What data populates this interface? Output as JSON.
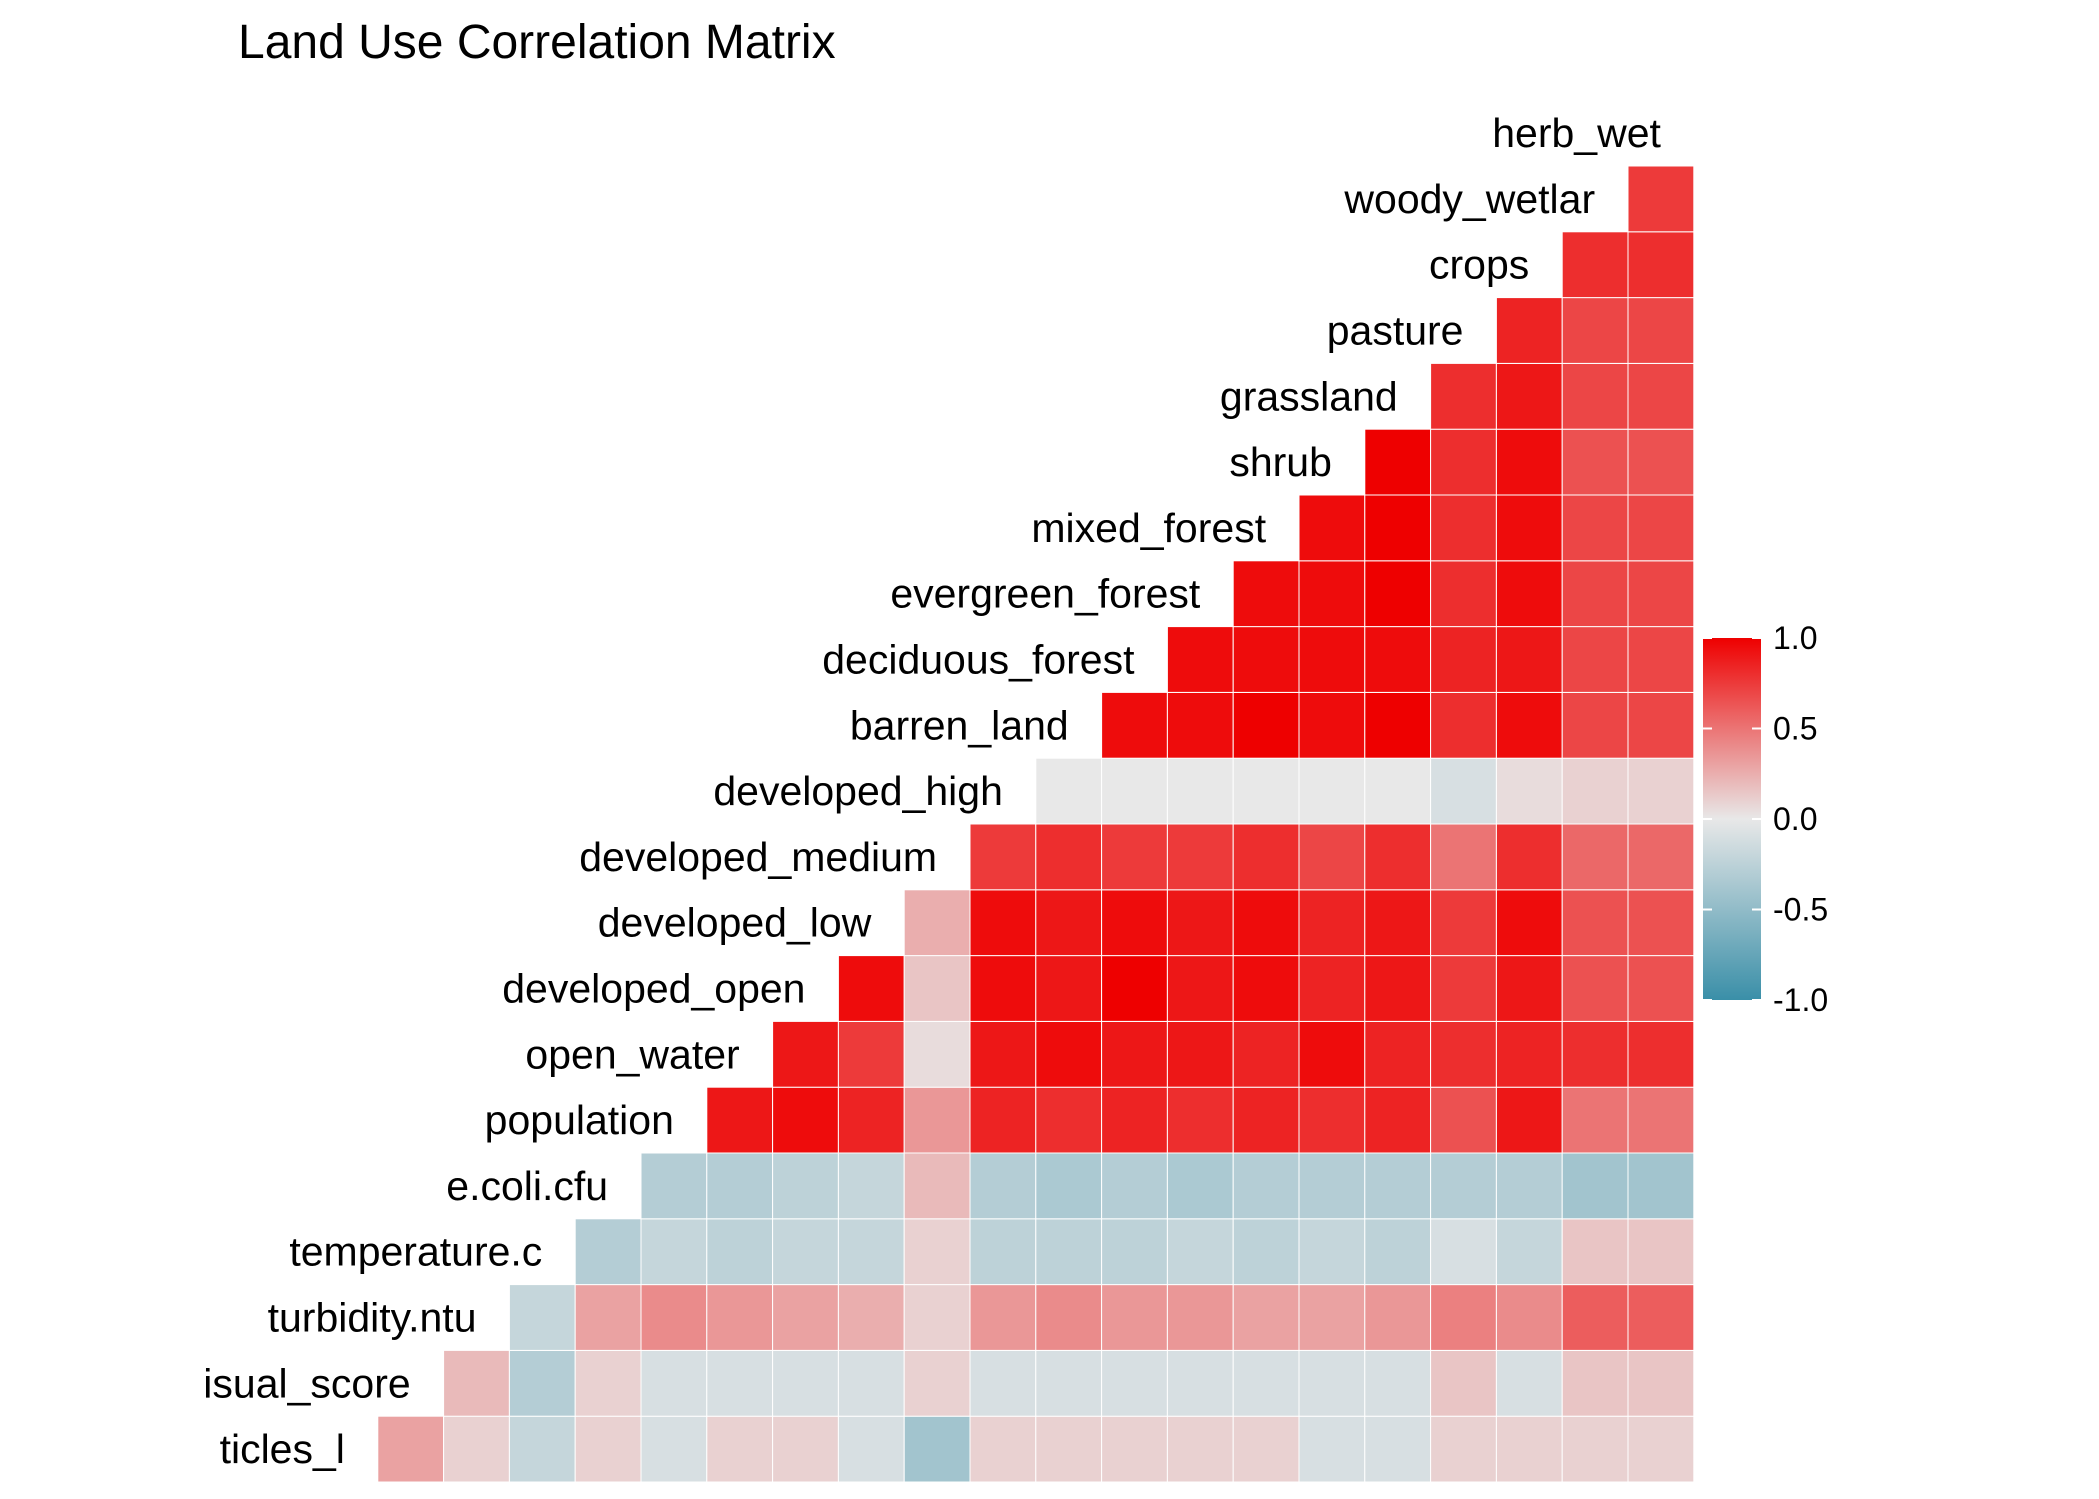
{
  "chart_data": {
    "type": "heatmap",
    "title": "Land Use Correlation Matrix",
    "variables": [
      "ticles_l",
      "isual_score",
      "turbidity.ntu",
      "temperature.c",
      "e.coli.cfu",
      "population",
      "open_water",
      "developed_open",
      "developed_low",
      "developed_medium",
      "developed_high",
      "barren_land",
      "deciduous_forest",
      "evergreen_forest",
      "mixed_forest",
      "shrub",
      "grassland",
      "pasture",
      "crops",
      "woody_wetlar",
      "herb_wet"
    ],
    "matrix": [
      [
        null,
        0.3,
        0.1,
        -0.2,
        0.1,
        -0.1,
        0.1,
        0.1,
        -0.1,
        -0.4,
        0.1,
        0.1,
        0.1,
        0.1,
        0.1,
        -0.1,
        -0.1,
        0.1,
        0.1,
        0.1,
        0.1
      ],
      [
        null,
        null,
        0.2,
        -0.3,
        0.1,
        -0.1,
        -0.1,
        -0.1,
        -0.1,
        0.1,
        -0.1,
        -0.1,
        -0.1,
        -0.1,
        -0.1,
        -0.1,
        -0.1,
        0.15,
        -0.1,
        0.15,
        0.15
      ],
      [
        null,
        null,
        null,
        -0.2,
        0.3,
        0.4,
        0.35,
        0.3,
        0.25,
        0.1,
        0.35,
        0.4,
        0.35,
        0.35,
        0.3,
        0.3,
        0.35,
        0.45,
        0.4,
        0.6,
        0.6
      ],
      [
        null,
        null,
        null,
        null,
        -0.3,
        -0.2,
        -0.25,
        -0.2,
        -0.2,
        0.1,
        -0.25,
        -0.25,
        -0.25,
        -0.2,
        -0.25,
        -0.2,
        -0.25,
        -0.1,
        -0.2,
        0.15,
        0.15
      ],
      [
        null,
        null,
        null,
        null,
        null,
        -0.3,
        -0.3,
        -0.25,
        -0.2,
        0.2,
        -0.3,
        -0.35,
        -0.3,
        -0.35,
        -0.3,
        -0.3,
        -0.3,
        -0.3,
        -0.3,
        -0.4,
        -0.4
      ],
      [
        null,
        null,
        null,
        null,
        null,
        null,
        0.9,
        0.95,
        0.85,
        0.35,
        0.85,
        0.8,
        0.85,
        0.8,
        0.85,
        0.8,
        0.85,
        0.65,
        0.9,
        0.5,
        0.5
      ],
      [
        null,
        null,
        null,
        null,
        null,
        null,
        null,
        0.9,
        0.75,
        0.05,
        0.9,
        0.95,
        0.9,
        0.9,
        0.85,
        0.95,
        0.85,
        0.8,
        0.85,
        0.8,
        0.8
      ],
      [
        null,
        null,
        null,
        null,
        null,
        null,
        null,
        null,
        0.95,
        0.15,
        0.95,
        0.9,
        1.0,
        0.9,
        0.95,
        0.85,
        0.9,
        0.75,
        0.9,
        0.65,
        0.65
      ],
      [
        null,
        null,
        null,
        null,
        null,
        null,
        null,
        null,
        null,
        0.25,
        0.95,
        0.9,
        0.95,
        0.9,
        0.95,
        0.85,
        0.9,
        0.75,
        0.95,
        0.65,
        0.65
      ],
      [
        null,
        null,
        null,
        null,
        null,
        null,
        null,
        null,
        null,
        null,
        0.75,
        0.8,
        0.75,
        0.75,
        0.8,
        0.7,
        0.8,
        0.5,
        0.8,
        0.55,
        0.55
      ],
      [
        null,
        null,
        null,
        null,
        null,
        null,
        null,
        null,
        null,
        null,
        null,
        0.0,
        0.0,
        0.0,
        0.0,
        0.0,
        0.0,
        -0.1,
        0.05,
        0.1,
        0.1
      ],
      [
        null,
        null,
        null,
        null,
        null,
        null,
        null,
        null,
        null,
        null,
        null,
        null,
        0.95,
        0.95,
        1.0,
        0.95,
        1.0,
        0.8,
        0.95,
        0.7,
        0.7
      ],
      [
        null,
        null,
        null,
        null,
        null,
        null,
        null,
        null,
        null,
        null,
        null,
        null,
        null,
        0.95,
        0.95,
        0.95,
        0.95,
        0.85,
        0.9,
        0.7,
        0.7
      ],
      [
        null,
        null,
        null,
        null,
        null,
        null,
        null,
        null,
        null,
        null,
        null,
        null,
        null,
        null,
        0.95,
        0.95,
        1.0,
        0.8,
        0.95,
        0.7,
        0.7
      ],
      [
        null,
        null,
        null,
        null,
        null,
        null,
        null,
        null,
        null,
        null,
        null,
        null,
        null,
        null,
        null,
        0.95,
        1.0,
        0.8,
        0.95,
        0.7,
        0.7
      ],
      [
        null,
        null,
        null,
        null,
        null,
        null,
        null,
        null,
        null,
        null,
        null,
        null,
        null,
        null,
        null,
        null,
        1.0,
        0.8,
        0.95,
        0.65,
        0.65
      ],
      [
        null,
        null,
        null,
        null,
        null,
        null,
        null,
        null,
        null,
        null,
        null,
        null,
        null,
        null,
        null,
        null,
        null,
        0.8,
        0.9,
        0.7,
        0.7
      ],
      [
        null,
        null,
        null,
        null,
        null,
        null,
        null,
        null,
        null,
        null,
        null,
        null,
        null,
        null,
        null,
        null,
        null,
        null,
        0.85,
        0.7,
        0.7
      ],
      [
        null,
        null,
        null,
        null,
        null,
        null,
        null,
        null,
        null,
        null,
        null,
        null,
        null,
        null,
        null,
        null,
        null,
        null,
        null,
        0.8,
        0.8
      ],
      [
        null,
        null,
        null,
        null,
        null,
        null,
        null,
        null,
        null,
        null,
        null,
        null,
        null,
        null,
        null,
        null,
        null,
        null,
        null,
        null,
        0.75
      ],
      [
        null,
        null,
        null,
        null,
        null,
        null,
        null,
        null,
        null,
        null,
        null,
        null,
        null,
        null,
        null,
        null,
        null,
        null,
        null,
        null,
        null
      ]
    ],
    "value_range": [
      -1.0,
      1.0
    ],
    "colors": {
      "low": "#3A8FA8",
      "mid": "#E8E8E8",
      "high": "#EE0000"
    },
    "legend": {
      "ticks": [
        1.0,
        0.5,
        0.0,
        -0.5,
        -1.0
      ],
      "tick_labels": [
        "1.0",
        "0.5",
        "0.0",
        "-0.5",
        "-1.0"
      ],
      "position": "right"
    },
    "grid": false
  }
}
